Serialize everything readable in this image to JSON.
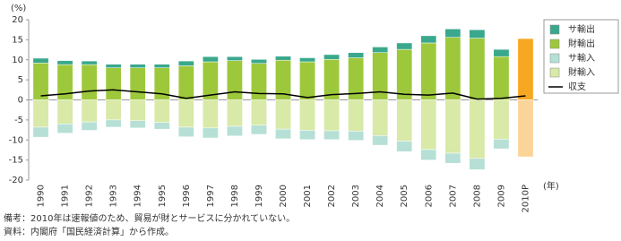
{
  "chart_data": {
    "type": "stacked-bar-line",
    "y_label": "(%)",
    "x_label": "(年)",
    "notes": [
      "備考：2010年は速報値のため、貿易が財とサービスに分かれていない。",
      "資料：内閣府「国民経済計算」から作成。"
    ],
    "categories": [
      "1990",
      "1991",
      "1992",
      "1993",
      "1994",
      "1995",
      "1996",
      "1997",
      "1998",
      "1999",
      "2000",
      "2001",
      "2002",
      "2003",
      "2004",
      "2005",
      "2006",
      "2007",
      "2008",
      "2009",
      "2010P"
    ],
    "highlight_category": "2010P",
    "ylim": [
      -20,
      20
    ],
    "yticks": [
      -20,
      -15,
      -10,
      -5,
      0,
      5,
      10,
      15,
      20
    ],
    "grid": false,
    "legend": "right",
    "series": [
      {
        "name": "サ輸出",
        "color": "#3aa88c",
        "sign": "positive",
        "stack_order": 1,
        "values": [
          1.2,
          1.0,
          0.9,
          0.9,
          0.9,
          0.9,
          1.2,
          1.3,
          1.0,
          1.0,
          1.0,
          1.0,
          1.2,
          1.3,
          1.4,
          1.6,
          1.8,
          2.1,
          2.1,
          1.8,
          null
        ]
      },
      {
        "name": "財輸出",
        "color": "#9dc83c",
        "highlight_color": "#f7a823",
        "sign": "positive",
        "stack_order": 0,
        "values": [
          9.2,
          8.8,
          8.8,
          8.0,
          8.0,
          8.0,
          8.5,
          9.5,
          9.8,
          9.1,
          9.9,
          9.5,
          10.1,
          10.5,
          11.8,
          12.6,
          14.2,
          15.6,
          15.4,
          10.8,
          15.3
        ]
      },
      {
        "name": "サ輸入",
        "color": "#b6e0d5",
        "sign": "negative",
        "stack_order": 1,
        "values": [
          -2.5,
          -2.3,
          -2.1,
          -1.8,
          -1.8,
          -1.7,
          -2.4,
          -2.5,
          -2.4,
          -2.3,
          -2.4,
          -2.3,
          -2.2,
          -2.3,
          -2.4,
          -2.6,
          -2.6,
          -2.5,
          -2.8,
          -2.4,
          null
        ]
      },
      {
        "name": "財輸入",
        "color": "#d8e9a8",
        "highlight_color": "#fbd49a",
        "sign": "negative",
        "stack_order": 0,
        "values": [
          -6.8,
          -6.0,
          -5.5,
          -5.0,
          -5.2,
          -5.6,
          -6.8,
          -7.0,
          -6.6,
          -6.3,
          -7.3,
          -7.6,
          -7.7,
          -7.8,
          -8.9,
          -10.3,
          -12.4,
          -13.3,
          -14.6,
          -9.8,
          -14.2
        ]
      },
      {
        "name": "収支",
        "color": "#000000",
        "kind": "line",
        "values": [
          1.0,
          1.5,
          2.2,
          2.5,
          2.0,
          1.5,
          0.4,
          1.2,
          2.0,
          1.6,
          1.5,
          0.6,
          1.3,
          1.6,
          2.0,
          1.4,
          1.2,
          1.7,
          0.2,
          0.4,
          1.0
        ]
      }
    ]
  }
}
